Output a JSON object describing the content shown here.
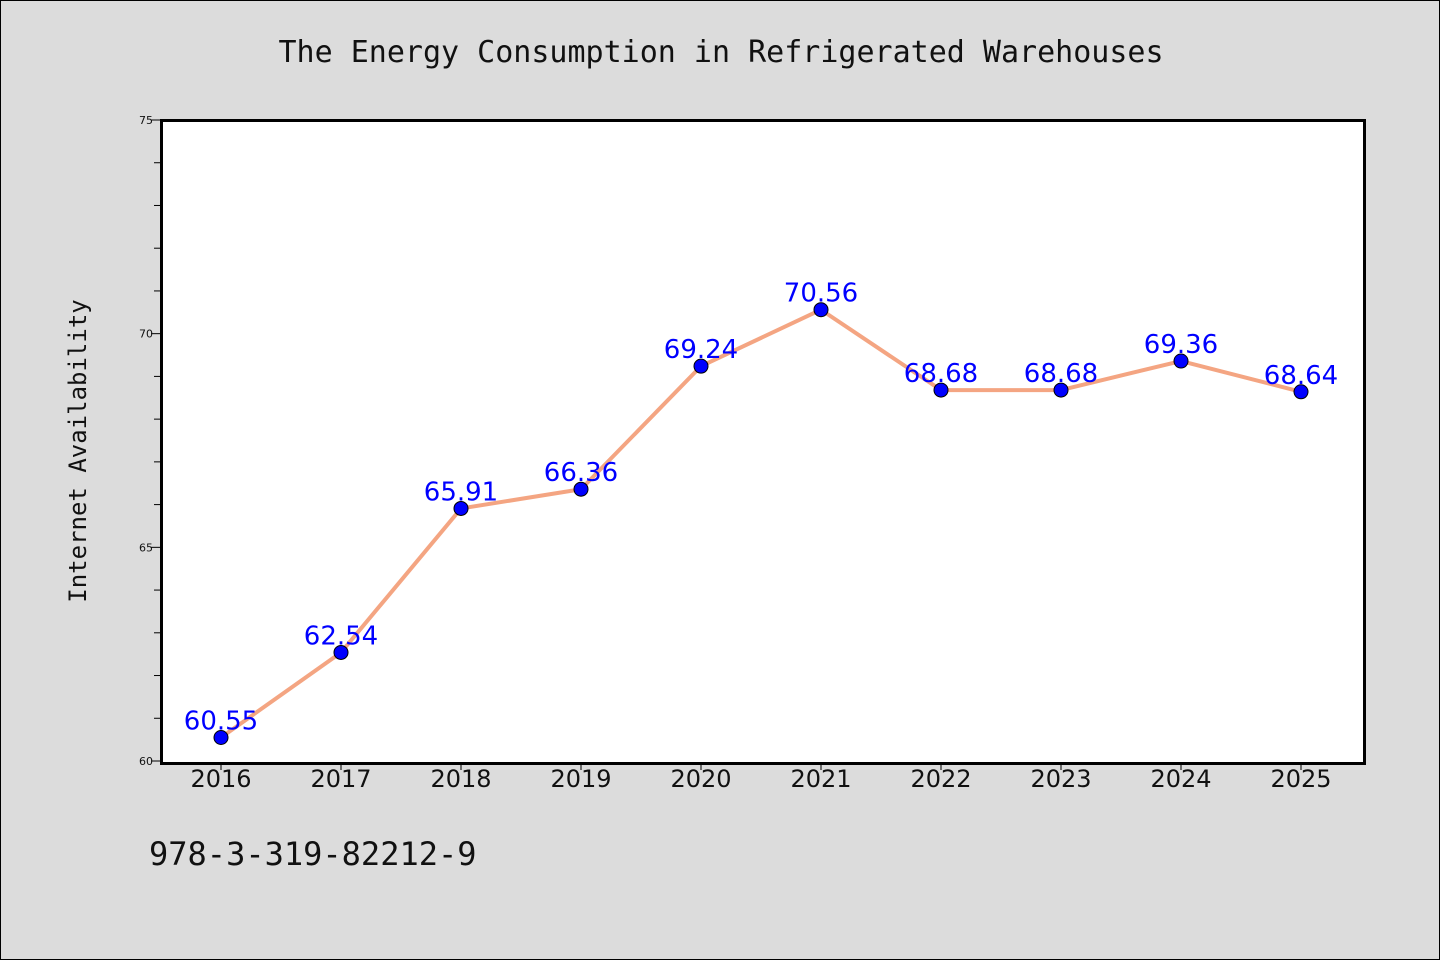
{
  "chart_data": {
    "type": "line",
    "title": "The Energy Consumption in Refrigerated Warehouses",
    "xlabel": "",
    "ylabel": "Internet Availability",
    "categories": [
      "2016",
      "2017",
      "2018",
      "2019",
      "2020",
      "2021",
      "2022",
      "2023",
      "2024",
      "2025"
    ],
    "series": [
      {
        "values": [
          60.55,
          62.54,
          65.91,
          66.36,
          69.24,
          70.56,
          68.68,
          68.68,
          69.36,
          68.64
        ],
        "data_labels": [
          "60.55",
          "62.54",
          "65.91",
          "66.36",
          "69.24",
          "70.56",
          "68.68",
          "68.68",
          "69.36",
          "68.64"
        ],
        "line_color": "#f4a582",
        "marker_color": "#0000ff"
      }
    ],
    "ylim": [
      60,
      75
    ],
    "yticks": [
      "60",
      "65",
      "70",
      "75"
    ],
    "grid": false,
    "legend": "none"
  },
  "footer": {
    "code": "978-3-319-82212-9"
  },
  "colors": {
    "background": "#dcdcdc",
    "plot_background": "#ffffff",
    "label_color": "#0000ff"
  }
}
